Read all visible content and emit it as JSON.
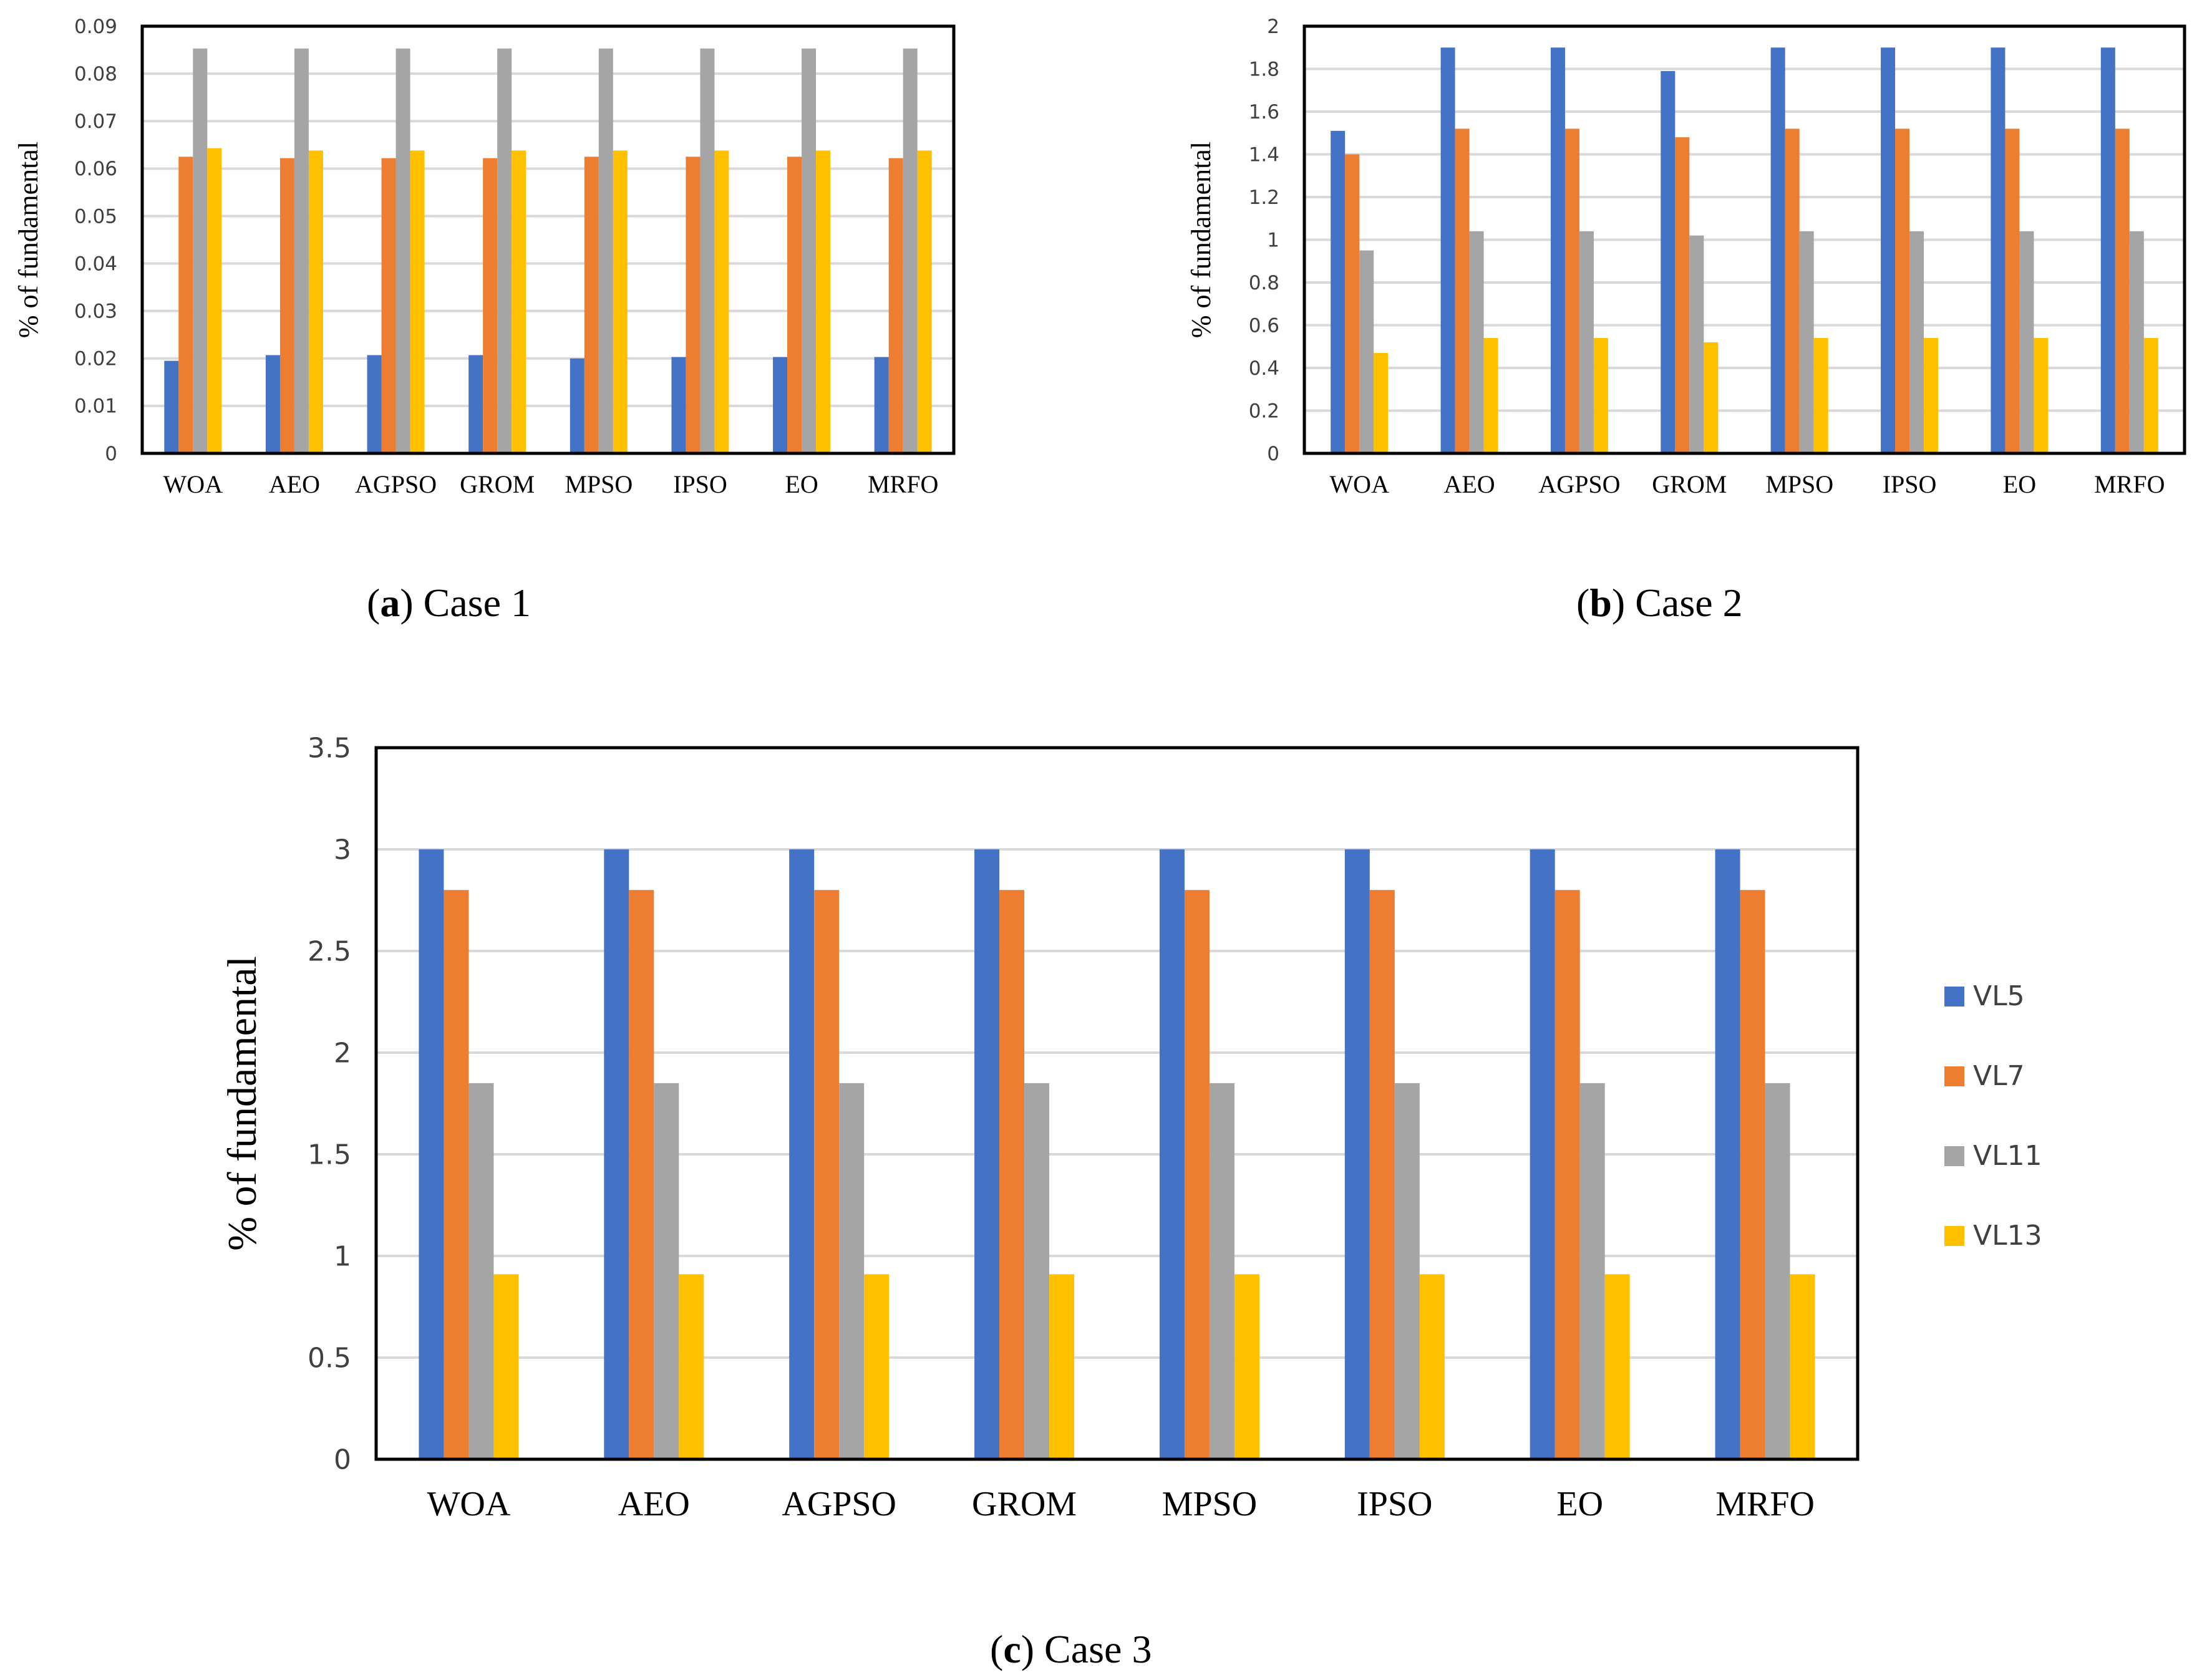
{
  "series_names": [
    "VL5",
    "VL7",
    "VL11",
    "VL13"
  ],
  "series_colors": [
    "#4472C4",
    "#ED7D31",
    "#A5A5A5",
    "#FFC000"
  ],
  "captions": [
    {
      "letter": "a",
      "text": "Case 1"
    },
    {
      "letter": "b",
      "text": "Case 2"
    },
    {
      "letter": "c",
      "text": "Case 3"
    }
  ],
  "chart_data": [
    {
      "type": "bar",
      "caption": "(a) Case 1",
      "ylabel": "% of fundamental",
      "ylim": [
        0,
        0.09
      ],
      "yticks": [
        "0",
        "0.01",
        "0.02",
        "0.03",
        "0.04",
        "0.05",
        "0.06",
        "0.07",
        "0.08",
        "0.09"
      ],
      "grid": true,
      "categories": [
        "WOA",
        "AEO",
        "AGPSO",
        "GROM",
        "MPSO",
        "IPSO",
        "EO",
        "MRFO"
      ],
      "series": [
        {
          "name": "VL5",
          "values": [
            0.0195,
            0.0207,
            0.0207,
            0.0207,
            0.02,
            0.0203,
            0.0203,
            0.0203
          ]
        },
        {
          "name": "VL7",
          "values": [
            0.0625,
            0.0622,
            0.0622,
            0.0622,
            0.0625,
            0.0625,
            0.0625,
            0.0622
          ]
        },
        {
          "name": "VL11",
          "values": [
            0.0853,
            0.0853,
            0.0853,
            0.0853,
            0.0853,
            0.0853,
            0.0853,
            0.0853
          ]
        },
        {
          "name": "VL13",
          "values": [
            0.0643,
            0.0638,
            0.0638,
            0.0638,
            0.0638,
            0.0638,
            0.0638,
            0.0638
          ]
        }
      ]
    },
    {
      "type": "bar",
      "caption": "(b) Case 2",
      "ylabel": "% of fundamental",
      "ylim": [
        0,
        2
      ],
      "yticks": [
        "0",
        "0.2",
        "0.4",
        "0.6",
        "0.8",
        "1",
        "1.2",
        "1.4",
        "1.6",
        "1.8",
        "2"
      ],
      "grid": true,
      "categories": [
        "WOA",
        "AEO",
        "AGPSO",
        "GROM",
        "MPSO",
        "IPSO",
        "EO",
        "MRFO"
      ],
      "series": [
        {
          "name": "VL5",
          "values": [
            1.51,
            1.9,
            1.9,
            1.79,
            1.9,
            1.9,
            1.9,
            1.9
          ]
        },
        {
          "name": "VL7",
          "values": [
            1.4,
            1.52,
            1.52,
            1.48,
            1.52,
            1.52,
            1.52,
            1.52
          ]
        },
        {
          "name": "VL11",
          "values": [
            0.95,
            1.04,
            1.04,
            1.02,
            1.04,
            1.04,
            1.04,
            1.04
          ]
        },
        {
          "name": "VL13",
          "values": [
            0.47,
            0.54,
            0.54,
            0.52,
            0.54,
            0.54,
            0.54,
            0.54
          ]
        }
      ]
    },
    {
      "type": "bar",
      "caption": "(c) Case 3",
      "ylabel": "% of fundamental",
      "ylim": [
        0,
        3.5
      ],
      "yticks": [
        "0",
        "0.5",
        "1",
        "1.5",
        "2",
        "2.5",
        "3",
        "3.5"
      ],
      "grid": true,
      "legend": "right",
      "categories": [
        "WOA",
        "AEO",
        "AGPSO",
        "GROM",
        "MPSO",
        "IPSO",
        "EO",
        "MRFO"
      ],
      "series": [
        {
          "name": "VL5",
          "values": [
            3.0,
            3.0,
            3.0,
            3.0,
            3.0,
            3.0,
            3.0,
            3.0
          ]
        },
        {
          "name": "VL7",
          "values": [
            2.8,
            2.8,
            2.8,
            2.8,
            2.8,
            2.8,
            2.8,
            2.8
          ]
        },
        {
          "name": "VL11",
          "values": [
            1.85,
            1.85,
            1.85,
            1.85,
            1.85,
            1.85,
            1.85,
            1.85
          ]
        },
        {
          "name": "VL13",
          "values": [
            0.91,
            0.91,
            0.91,
            0.91,
            0.91,
            0.91,
            0.91,
            0.91
          ]
        }
      ]
    }
  ]
}
